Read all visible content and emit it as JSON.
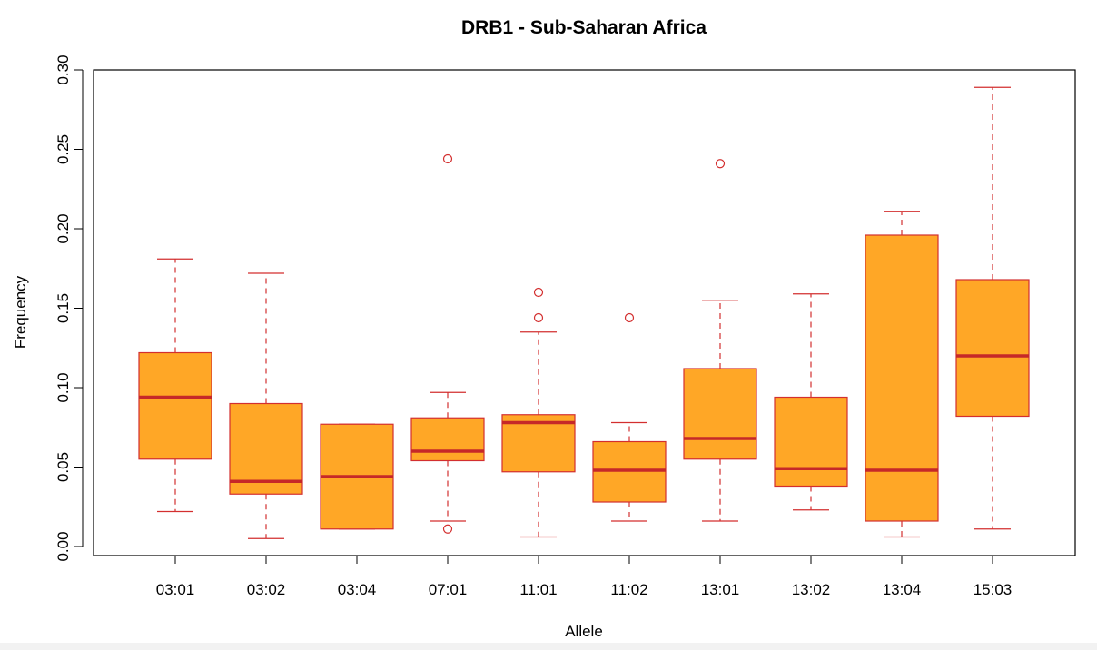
{
  "chart_data": {
    "type": "boxplot",
    "title": "DRB1 - Sub-Saharan Africa",
    "xlabel": "Allele",
    "ylabel": "Frequency",
    "ylim": [
      0,
      0.3
    ],
    "yticks": [
      "0.00",
      "0.05",
      "0.10",
      "0.15",
      "0.20",
      "0.25",
      "0.30"
    ],
    "colors": {
      "box_fill": "#FFA726",
      "box_border": "#D32F2F",
      "median": "#C62828",
      "whisker": "#D32F2F"
    },
    "categories": [
      "03:01",
      "03:02",
      "03:04",
      "07:01",
      "11:01",
      "11:02",
      "13:01",
      "13:02",
      "13:04",
      "15:03"
    ],
    "boxes": [
      {
        "category": "03:01",
        "whisker_low": 0.022,
        "q1": 0.055,
        "median": 0.094,
        "q3": 0.122,
        "whisker_high": 0.181,
        "outliers": []
      },
      {
        "category": "03:02",
        "whisker_low": 0.005,
        "q1": 0.033,
        "median": 0.041,
        "q3": 0.09,
        "whisker_high": 0.172,
        "outliers": []
      },
      {
        "category": "03:04",
        "whisker_low": 0.011,
        "q1": 0.011,
        "median": 0.044,
        "q3": 0.077,
        "whisker_high": 0.077,
        "outliers": []
      },
      {
        "category": "07:01",
        "whisker_low": 0.016,
        "q1": 0.054,
        "median": 0.06,
        "q3": 0.081,
        "whisker_high": 0.097,
        "outliers": [
          0.011,
          0.244
        ]
      },
      {
        "category": "11:01",
        "whisker_low": 0.006,
        "q1": 0.047,
        "median": 0.078,
        "q3": 0.083,
        "whisker_high": 0.135,
        "outliers": [
          0.144,
          0.16
        ]
      },
      {
        "category": "11:02",
        "whisker_low": 0.016,
        "q1": 0.028,
        "median": 0.048,
        "q3": 0.066,
        "whisker_high": 0.078,
        "outliers": [
          0.144
        ]
      },
      {
        "category": "13:01",
        "whisker_low": 0.016,
        "q1": 0.055,
        "median": 0.068,
        "q3": 0.112,
        "whisker_high": 0.155,
        "outliers": [
          0.241
        ]
      },
      {
        "category": "13:02",
        "whisker_low": 0.023,
        "q1": 0.038,
        "median": 0.049,
        "q3": 0.094,
        "whisker_high": 0.159,
        "outliers": []
      },
      {
        "category": "13:04",
        "whisker_low": 0.006,
        "q1": 0.016,
        "median": 0.048,
        "q3": 0.196,
        "whisker_high": 0.211,
        "outliers": []
      },
      {
        "category": "15:03",
        "whisker_low": 0.011,
        "q1": 0.082,
        "median": 0.12,
        "q3": 0.168,
        "whisker_high": 0.289,
        "outliers": []
      }
    ]
  }
}
